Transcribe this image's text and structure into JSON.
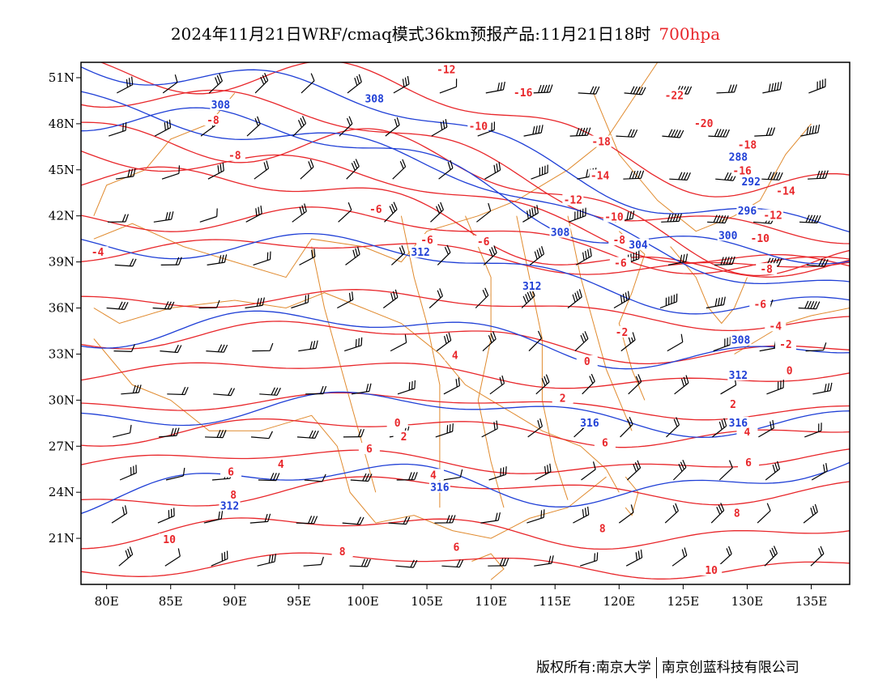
{
  "header": {
    "title": "2024年11月21日WRF/cmaq模式36km预报产品:11月21日18时",
    "level": "700hpa"
  },
  "colors": {
    "temperature": "#e8262a",
    "geopotential": "#1f3fd6",
    "boundary": "#e08a2e",
    "wind_barb": "#000000",
    "level_text": "#e8262a"
  },
  "axes": {
    "x_ticks": [
      "80E",
      "85E",
      "90E",
      "95E",
      "100E",
      "105E",
      "110E",
      "115E",
      "120E",
      "125E",
      "130E",
      "135E"
    ],
    "y_ticks": [
      "51N",
      "48N",
      "45N",
      "42N",
      "39N",
      "36N",
      "33N",
      "30N",
      "27N",
      "24N",
      "21N"
    ]
  },
  "map_data": {
    "lon_range": [
      78,
      138
    ],
    "lat_range": [
      18,
      52
    ],
    "temperature_labels": [
      {
        "text": "-12",
        "lon": 106.5,
        "lat": 51.5
      },
      {
        "text": "-16",
        "lon": 112.5,
        "lat": 50.0
      },
      {
        "text": "-22",
        "lon": 124.3,
        "lat": 49.8
      },
      {
        "text": "-20",
        "lon": 126.6,
        "lat": 48.0
      },
      {
        "text": "-8",
        "lon": 88.3,
        "lat": 48.2
      },
      {
        "text": "-10",
        "lon": 109.0,
        "lat": 47.8
      },
      {
        "text": "-8",
        "lon": 90.0,
        "lat": 45.9
      },
      {
        "text": "-18",
        "lon": 118.6,
        "lat": 46.8
      },
      {
        "text": "-18",
        "lon": 130.0,
        "lat": 46.6
      },
      {
        "text": "-16",
        "lon": 129.6,
        "lat": 44.9
      },
      {
        "text": "-14",
        "lon": 118.5,
        "lat": 44.6
      },
      {
        "text": "-14",
        "lon": 133.0,
        "lat": 43.6
      },
      {
        "text": "-12",
        "lon": 116.4,
        "lat": 43.0
      },
      {
        "text": "-12",
        "lon": 132.0,
        "lat": 42.0
      },
      {
        "text": "-10",
        "lon": 119.6,
        "lat": 41.9
      },
      {
        "text": "-8",
        "lon": 120.0,
        "lat": 40.4
      },
      {
        "text": "-10",
        "lon": 131.0,
        "lat": 40.5
      },
      {
        "text": "-6",
        "lon": 101.0,
        "lat": 42.4
      },
      {
        "text": "-6",
        "lon": 105.0,
        "lat": 40.4
      },
      {
        "text": "-6",
        "lon": 109.4,
        "lat": 40.3
      },
      {
        "text": "-4",
        "lon": 79.3,
        "lat": 39.6
      },
      {
        "text": "-6",
        "lon": 120.1,
        "lat": 38.9
      },
      {
        "text": "-8",
        "lon": 131.5,
        "lat": 38.5
      },
      {
        "text": "-6",
        "lon": 131.0,
        "lat": 36.2
      },
      {
        "text": "-4",
        "lon": 132.2,
        "lat": 34.8
      },
      {
        "text": "-2",
        "lon": 120.2,
        "lat": 34.4
      },
      {
        "text": "-2",
        "lon": 133.0,
        "lat": 33.6
      },
      {
        "text": "4",
        "lon": 107.2,
        "lat": 32.9
      },
      {
        "text": "0",
        "lon": 117.5,
        "lat": 32.5
      },
      {
        "text": "0",
        "lon": 133.3,
        "lat": 31.9
      },
      {
        "text": "2",
        "lon": 115.6,
        "lat": 30.1
      },
      {
        "text": "2",
        "lon": 128.9,
        "lat": 29.7
      },
      {
        "text": "0",
        "lon": 102.7,
        "lat": 28.5
      },
      {
        "text": "2",
        "lon": 103.2,
        "lat": 27.6
      },
      {
        "text": "4",
        "lon": 130.0,
        "lat": 27.9
      },
      {
        "text": "6",
        "lon": 118.9,
        "lat": 27.2
      },
      {
        "text": "6",
        "lon": 100.5,
        "lat": 26.8
      },
      {
        "text": "6",
        "lon": 130.1,
        "lat": 25.9
      },
      {
        "text": "4",
        "lon": 93.6,
        "lat": 25.8
      },
      {
        "text": "6",
        "lon": 89.7,
        "lat": 25.3
      },
      {
        "text": "4",
        "lon": 105.5,
        "lat": 25.1
      },
      {
        "text": "8",
        "lon": 89.9,
        "lat": 23.8
      },
      {
        "text": "8",
        "lon": 129.2,
        "lat": 22.6
      },
      {
        "text": "8",
        "lon": 118.7,
        "lat": 21.6
      },
      {
        "text": "6",
        "lon": 107.3,
        "lat": 20.4
      },
      {
        "text": "10",
        "lon": 84.9,
        "lat": 20.9
      },
      {
        "text": "8",
        "lon": 98.4,
        "lat": 20.1
      },
      {
        "text": "10",
        "lon": 127.2,
        "lat": 18.9
      }
    ],
    "height_labels": [
      {
        "text": "308",
        "lon": 88.9,
        "lat": 49.2
      },
      {
        "text": "308",
        "lon": 100.9,
        "lat": 49.6
      },
      {
        "text": "288",
        "lon": 129.3,
        "lat": 45.8
      },
      {
        "text": "292",
        "lon": 130.3,
        "lat": 44.2
      },
      {
        "text": "296",
        "lon": 130.0,
        "lat": 42.3
      },
      {
        "text": "308",
        "lon": 115.4,
        "lat": 40.9
      },
      {
        "text": "300",
        "lon": 128.5,
        "lat": 40.7
      },
      {
        "text": "304",
        "lon": 121.5,
        "lat": 40.1
      },
      {
        "text": "312",
        "lon": 104.5,
        "lat": 39.6
      },
      {
        "text": "312",
        "lon": 113.2,
        "lat": 37.4
      },
      {
        "text": "308",
        "lon": 129.5,
        "lat": 33.9
      },
      {
        "text": "312",
        "lon": 129.3,
        "lat": 31.6
      },
      {
        "text": "316",
        "lon": 117.7,
        "lat": 28.5
      },
      {
        "text": "316",
        "lon": 129.3,
        "lat": 28.5
      },
      {
        "text": "316",
        "lon": 106.0,
        "lat": 24.3
      },
      {
        "text": "312",
        "lon": 89.6,
        "lat": 23.1
      }
    ]
  },
  "footer": {
    "left": "版权所有:南京大学",
    "right": "南京创蓝科技有限公司"
  }
}
